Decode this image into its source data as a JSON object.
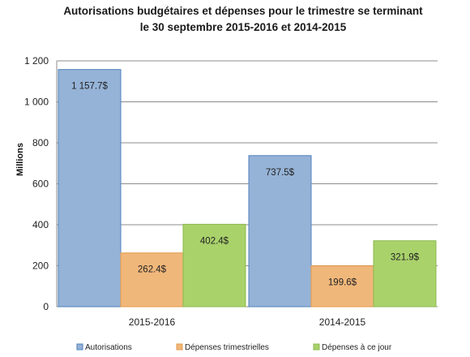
{
  "chart_data": {
    "type": "bar",
    "title_line1": "Autorisations budgétaires et dépenses pour le trimestre se terminant",
    "title_line2": "le 30 septembre 2015-2016 et 2014-2015",
    "ylabel": "Millions",
    "xlabel": "",
    "ylim": [
      0,
      1200
    ],
    "yticks": [
      0,
      200,
      400,
      600,
      800,
      1000,
      1200
    ],
    "ytick_labels": [
      "0",
      "200",
      "400",
      "600",
      "800",
      "1 000",
      "1 200"
    ],
    "categories": [
      "2015-2016",
      "2014-2015"
    ],
    "series": [
      {
        "name": "Autorisations",
        "values": [
          1157.7,
          737.5
        ],
        "labels": [
          "1 157.7$",
          "737.5$"
        ],
        "color": "#95b3d7",
        "border": "#4f81bd"
      },
      {
        "name": "Dépenses trimestrielles",
        "values": [
          262.4,
          199.6
        ],
        "labels": [
          "262.4$",
          "199.6$"
        ],
        "color": "#f0b77a",
        "border": "#e49b4b"
      },
      {
        "name": "Dépenses à ce jour",
        "values": [
          402.4,
          321.9
        ],
        "labels": [
          "402.4$",
          "321.9$"
        ],
        "color": "#a9d26b",
        "border": "#8cb84f"
      }
    ],
    "grid": true,
    "legend_position": "bottom"
  }
}
